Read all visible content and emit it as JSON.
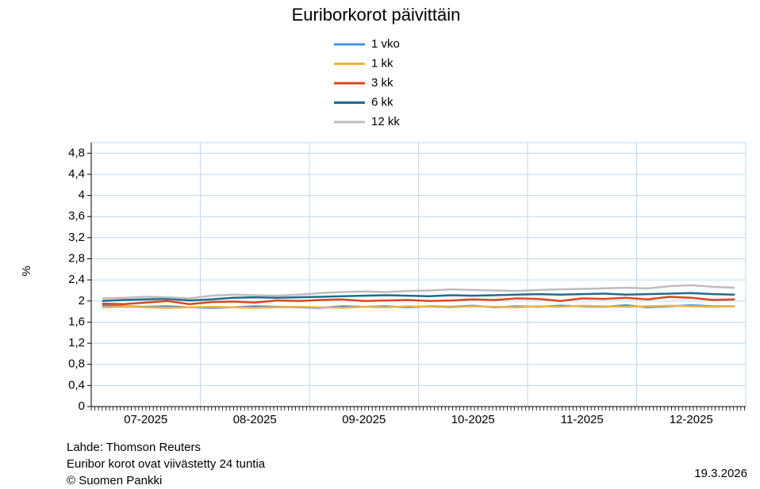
{
  "chart_data": {
    "type": "line",
    "title": "Euriborkorot päivittäin",
    "y_label": "%",
    "categories": [
      null,
      null,
      "07-2025",
      null,
      null,
      null,
      null,
      "08-2025",
      null,
      null,
      null,
      null,
      "09-2025",
      null,
      null,
      null,
      null,
      "10-2025",
      null,
      null,
      null,
      null,
      "11-2025",
      null,
      null,
      null,
      null,
      "12-2025",
      null,
      null
    ],
    "series": [
      {
        "name": "1 vko",
        "color": "#4a90e2",
        "values": [
          1.92,
          1.9,
          1.89,
          1.9,
          1.88,
          1.87,
          1.88,
          1.9,
          1.89,
          1.88,
          1.87,
          1.9,
          1.89,
          1.9,
          1.88,
          1.9,
          1.89,
          1.91,
          1.88,
          1.9,
          1.89,
          1.91,
          1.9,
          1.89,
          1.92,
          1.88,
          1.9,
          1.92,
          1.9,
          1.9
        ]
      },
      {
        "name": "1 kk",
        "color": "#f2b342",
        "values": [
          1.88,
          1.89,
          1.88,
          1.87,
          1.88,
          1.89,
          1.88,
          1.87,
          1.88,
          1.89,
          1.88,
          1.87,
          1.89,
          1.88,
          1.9,
          1.89,
          1.88,
          1.9,
          1.89,
          1.88,
          1.9,
          1.89,
          1.91,
          1.9,
          1.89,
          1.9,
          1.91,
          1.9,
          1.89,
          1.9
        ]
      },
      {
        "name": "3 kk",
        "color": "#e0461b",
        "values": [
          1.95,
          1.94,
          1.97,
          2.0,
          1.94,
          1.98,
          1.99,
          1.97,
          2.01,
          2.0,
          2.02,
          2.03,
          2.0,
          2.01,
          2.02,
          2.0,
          2.01,
          2.03,
          2.02,
          2.05,
          2.04,
          2.0,
          2.05,
          2.04,
          2.06,
          2.03,
          2.08,
          2.06,
          2.02,
          2.03
        ]
      },
      {
        "name": "6 kk",
        "color": "#1f6b8f",
        "values": [
          2.0,
          2.02,
          2.03,
          2.04,
          2.01,
          2.03,
          2.06,
          2.07,
          2.06,
          2.07,
          2.08,
          2.09,
          2.1,
          2.11,
          2.1,
          2.09,
          2.11,
          2.1,
          2.11,
          2.12,
          2.13,
          2.12,
          2.13,
          2.14,
          2.12,
          2.13,
          2.14,
          2.15,
          2.13,
          2.12
        ]
      },
      {
        "name": "12 kk",
        "color": "#bdbdbd",
        "values": [
          2.05,
          2.06,
          2.08,
          2.07,
          2.05,
          2.1,
          2.12,
          2.11,
          2.1,
          2.12,
          2.15,
          2.17,
          2.18,
          2.17,
          2.19,
          2.2,
          2.22,
          2.21,
          2.2,
          2.19,
          2.21,
          2.22,
          2.23,
          2.24,
          2.25,
          2.24,
          2.28,
          2.3,
          2.27,
          2.25
        ]
      }
    ],
    "ylim": [
      0,
      5
    ],
    "yticks": [
      0,
      {
        "value": 0.4,
        "label": "0,4"
      },
      {
        "value": 0.8,
        "label": "0,8"
      },
      {
        "value": 1.2,
        "label": "1,2"
      },
      {
        "value": 1.6,
        "label": "1,6"
      },
      2,
      {
        "value": 2.4,
        "label": "2,4"
      },
      {
        "value": 2.8,
        "label": "2,8"
      },
      {
        "value": 3.2,
        "label": "3,2"
      },
      {
        "value": 3.6,
        "label": "3,6"
      },
      4,
      {
        "value": 4.4,
        "label": "4,4"
      },
      {
        "value": 4.8,
        "label": "4,8"
      }
    ],
    "grid": true,
    "legend": "top",
    "source": [
      "Lahde: Thomson Reuters",
      "Euribor korot ovat viivästetty 24 tuntia",
      "© Suomen Pankki"
    ],
    "date": "19.3.2026"
  }
}
